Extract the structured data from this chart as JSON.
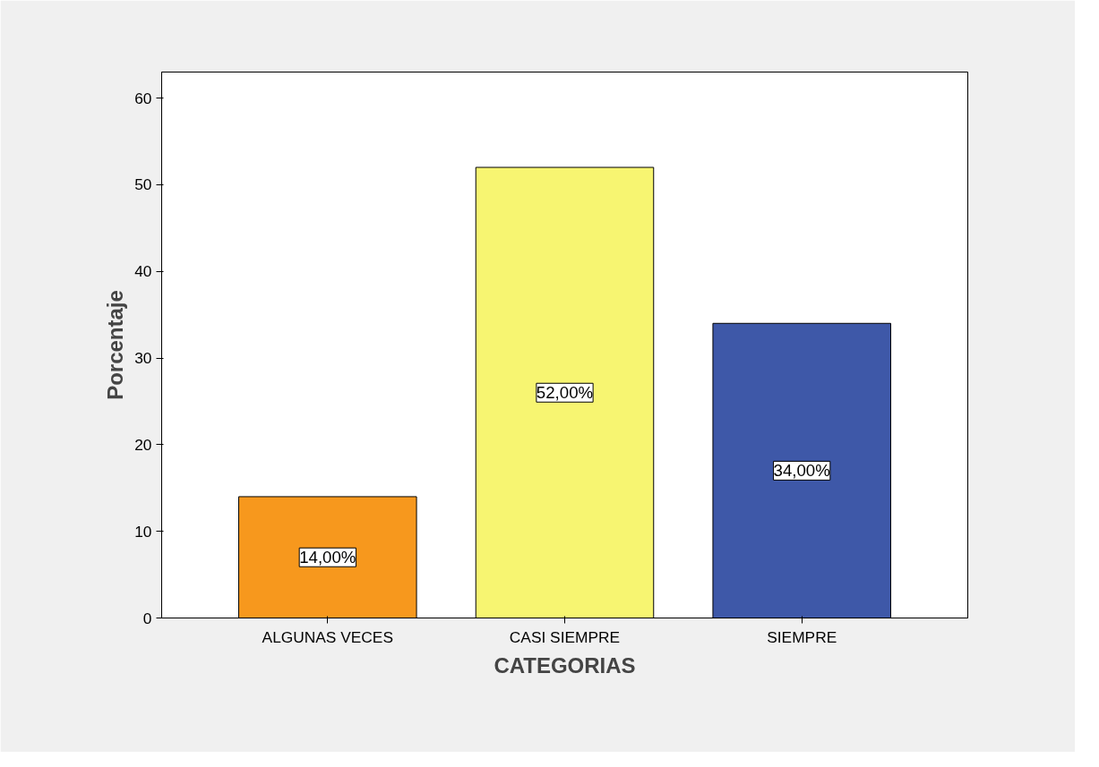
{
  "chart_data": {
    "type": "bar",
    "xlabel": "CATEGORIAS",
    "ylabel": "Porcentaje",
    "categories": [
      "ALGUNAS VECES",
      "CASI SIEMPRE",
      "SIEMPRE"
    ],
    "values": [
      14,
      52,
      34
    ],
    "colors": [
      "#f7981d",
      "#f7f571",
      "#3e58a8"
    ],
    "value_labels": [
      "14,00%",
      "52,00%",
      "34,00%"
    ],
    "ylim": [
      0,
      63
    ],
    "yticks": [
      0,
      10,
      20,
      30,
      40,
      50,
      60
    ],
    "grid": false
  }
}
